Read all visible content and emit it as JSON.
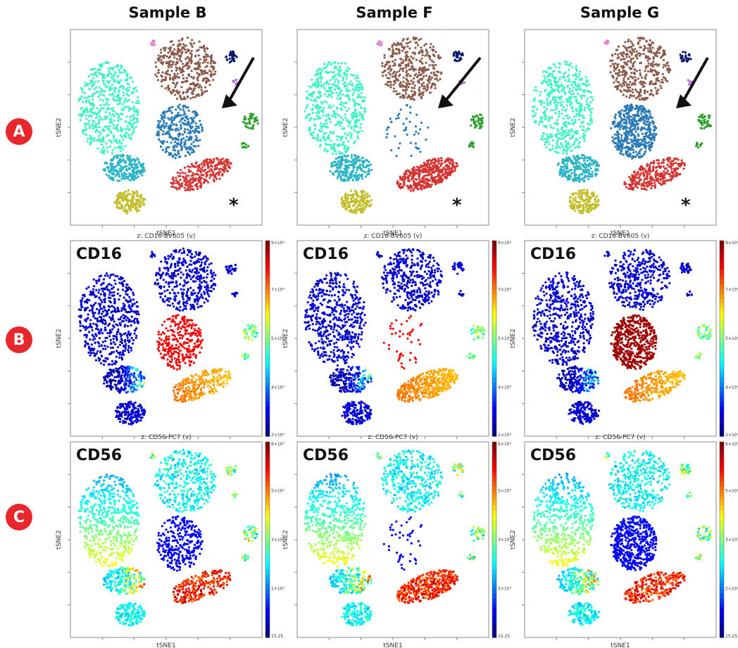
{
  "columns": [
    "Sample B",
    "Sample F",
    "Sample G"
  ],
  "rows": [
    "A",
    "B",
    "C"
  ],
  "axes": {
    "xlabel": "tSNE1",
    "ylabel": "tSNE2"
  },
  "row_annotations": {
    "A": {
      "marker": "*",
      "arrow": true
    },
    "B": {
      "channel": "CD16",
      "z_title": "z: CD16-BV605 (v)",
      "colorbar": [
        "2×10⁴",
        "4×10⁴",
        "5×10⁴",
        "7×10⁴",
        "9×10⁴"
      ]
    },
    "C": {
      "channel": "CD56",
      "z_title": "z: CD56-PC7 (v)",
      "colorbar": [
        "15.25",
        "2×10⁵",
        "3×10⁵",
        "5×10⁵",
        "6×10⁵"
      ]
    }
  },
  "colors": {
    "badge": "#e8272d",
    "clusters": {
      "large": "#3ff3c4",
      "top": "#8c5a4a",
      "center": "#2a7bb5",
      "left_bottom": "#2bb4c6",
      "right_bottom": "#d43330",
      "bottom": "#c3be2a",
      "green": "#2aa02b",
      "navy": "#0b1a6b",
      "purple": "#b470d6",
      "pink": "#e27fcf"
    }
  },
  "chart_data": {
    "type": "scatter",
    "layout": "3x3 grid of tSNE scatter plots",
    "row_A_cluster_color_by_population": true,
    "row_B_color_by": "CD16-BV605",
    "row_C_color_by": "CD56-PC7",
    "center_cluster_density": {
      "Sample B": "medium",
      "Sample F": "sparse",
      "Sample G": "dense"
    }
  }
}
